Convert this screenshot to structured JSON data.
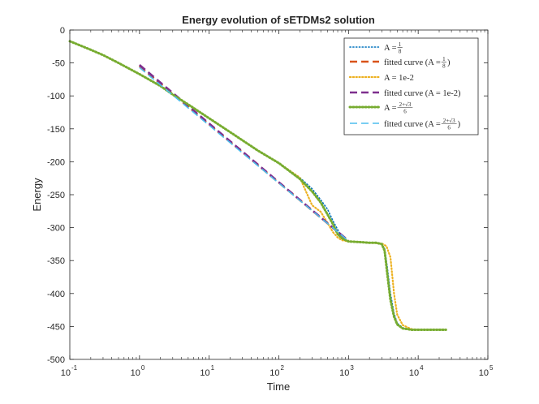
{
  "chart_data": {
    "type": "line",
    "title": "Energy evolution of sETDMs2 solution",
    "xlabel": "Time",
    "ylabel": "Energy",
    "xscale": "log",
    "xlim": [
      0.1,
      100000
    ],
    "ylim": [
      -500,
      0
    ],
    "grid": false,
    "legend_location": "top-right",
    "x_tick_labels": [
      {
        "value": 0.1,
        "base": "10",
        "exp": "-1"
      },
      {
        "value": 1,
        "base": "10",
        "exp": "0"
      },
      {
        "value": 10,
        "base": "10",
        "exp": "1"
      },
      {
        "value": 100,
        "base": "10",
        "exp": "2"
      },
      {
        "value": 1000,
        "base": "10",
        "exp": "3"
      },
      {
        "value": 10000,
        "base": "10",
        "exp": "4"
      },
      {
        "value": 100000,
        "base": "10",
        "exp": "5"
      }
    ],
    "y_ticks": [
      0,
      -50,
      -100,
      -150,
      -200,
      -250,
      -300,
      -350,
      -400,
      -450,
      -500
    ],
    "series": [
      {
        "name": "A = 1/8",
        "legend": {
          "prefix": "A = ",
          "frac": [
            "1",
            "8"
          ],
          "suffix": ""
        },
        "color": "#0072BD",
        "style": "dotted",
        "width": 1.6,
        "points": [
          [
            0.1,
            -17
          ],
          [
            0.2,
            -30
          ],
          [
            0.3,
            -38
          ],
          [
            0.5,
            -50
          ],
          [
            1,
            -67
          ],
          [
            2,
            -85
          ],
          [
            3,
            -98
          ],
          [
            5,
            -113
          ],
          [
            10,
            -134
          ],
          [
            20,
            -155
          ],
          [
            50,
            -183
          ],
          [
            100,
            -202
          ],
          [
            200,
            -224
          ],
          [
            300,
            -241
          ],
          [
            400,
            -258
          ],
          [
            500,
            -272
          ],
          [
            600,
            -290
          ],
          [
            700,
            -303
          ],
          [
            800,
            -315
          ],
          [
            900,
            -320
          ],
          [
            1000,
            -321
          ],
          [
            1500,
            -322
          ],
          [
            2000,
            -323
          ],
          [
            2500,
            -323
          ],
          [
            3000,
            -325
          ],
          [
            3300,
            -332
          ],
          [
            3600,
            -360
          ],
          [
            4000,
            -400
          ],
          [
            4500,
            -430
          ],
          [
            5000,
            -445
          ],
          [
            6000,
            -452
          ],
          [
            8000,
            -455
          ],
          [
            10000,
            -455
          ],
          [
            25000,
            -455
          ]
        ]
      },
      {
        "name": "fitted curve (A = 1/8)",
        "legend": {
          "prefix": "fitted curve (A = ",
          "frac": [
            "1",
            "8"
          ],
          "suffix": ")"
        },
        "color": "#D95319",
        "style": "dashed",
        "width": 2.6,
        "points": [
          [
            1,
            -55
          ],
          [
            1000,
            -320
          ]
        ]
      },
      {
        "name": "A = 1e-2",
        "legend": {
          "prefix": "A = 1e-2",
          "frac": null,
          "suffix": ""
        },
        "color": "#EDB120",
        "style": "dotted",
        "width": 2.2,
        "points": [
          [
            0.1,
            -17
          ],
          [
            0.2,
            -30
          ],
          [
            0.3,
            -38
          ],
          [
            0.5,
            -50
          ],
          [
            1,
            -67
          ],
          [
            2,
            -85
          ],
          [
            3,
            -98
          ],
          [
            5,
            -113
          ],
          [
            10,
            -134
          ],
          [
            20,
            -155
          ],
          [
            50,
            -183
          ],
          [
            100,
            -202
          ],
          [
            200,
            -224
          ],
          [
            300,
            -266
          ],
          [
            400,
            -276
          ],
          [
            500,
            -293
          ],
          [
            600,
            -307
          ],
          [
            700,
            -315
          ],
          [
            800,
            -319
          ],
          [
            1000,
            -321
          ],
          [
            1500,
            -322
          ],
          [
            2000,
            -323
          ],
          [
            3000,
            -324
          ],
          [
            3500,
            -328
          ],
          [
            4000,
            -345
          ],
          [
            4500,
            -400
          ],
          [
            5000,
            -432
          ],
          [
            6000,
            -448
          ],
          [
            8000,
            -454
          ],
          [
            10000,
            -455
          ],
          [
            25000,
            -455
          ]
        ]
      },
      {
        "name": "fitted curve (A = 1e-2)",
        "legend": {
          "prefix": "fitted curve (A = 1e-2)",
          "frac": null,
          "suffix": ""
        },
        "color": "#7E2F8E",
        "style": "dashed",
        "width": 2.6,
        "points": [
          [
            1,
            -53
          ],
          [
            1000,
            -320
          ]
        ]
      },
      {
        "name": "A = (2+√3)/6",
        "legend": {
          "prefix": "A = ",
          "frac": [
            "2+√3",
            "6"
          ],
          "suffix": ""
        },
        "color": "#77AC30",
        "style": "dotted",
        "width": 3.0,
        "points": [
          [
            0.1,
            -17
          ],
          [
            0.2,
            -30
          ],
          [
            0.3,
            -38
          ],
          [
            0.5,
            -50
          ],
          [
            1,
            -67
          ],
          [
            2,
            -85
          ],
          [
            3,
            -98
          ],
          [
            5,
            -113
          ],
          [
            10,
            -134
          ],
          [
            20,
            -155
          ],
          [
            50,
            -183
          ],
          [
            100,
            -202
          ],
          [
            200,
            -226
          ],
          [
            300,
            -245
          ],
          [
            400,
            -262
          ],
          [
            500,
            -280
          ],
          [
            600,
            -295
          ],
          [
            700,
            -310
          ],
          [
            800,
            -316
          ],
          [
            1000,
            -321
          ],
          [
            1500,
            -322
          ],
          [
            2000,
            -323
          ],
          [
            2500,
            -323
          ],
          [
            3000,
            -325
          ],
          [
            3300,
            -335
          ],
          [
            3600,
            -370
          ],
          [
            4000,
            -410
          ],
          [
            4500,
            -435
          ],
          [
            5000,
            -447
          ],
          [
            6000,
            -453
          ],
          [
            8000,
            -455
          ],
          [
            10000,
            -455
          ],
          [
            25000,
            -455
          ]
        ]
      },
      {
        "name": "fitted curve (A = (2+√3)/6)",
        "legend": {
          "prefix": "fitted curve (A = ",
          "frac": [
            "2+√3",
            "6"
          ],
          "suffix": ")"
        },
        "color": "#4DBEEE",
        "style": "dashed",
        "width": 1.6,
        "points": [
          [
            1,
            -57
          ],
          [
            1000,
            -320
          ]
        ]
      }
    ]
  }
}
